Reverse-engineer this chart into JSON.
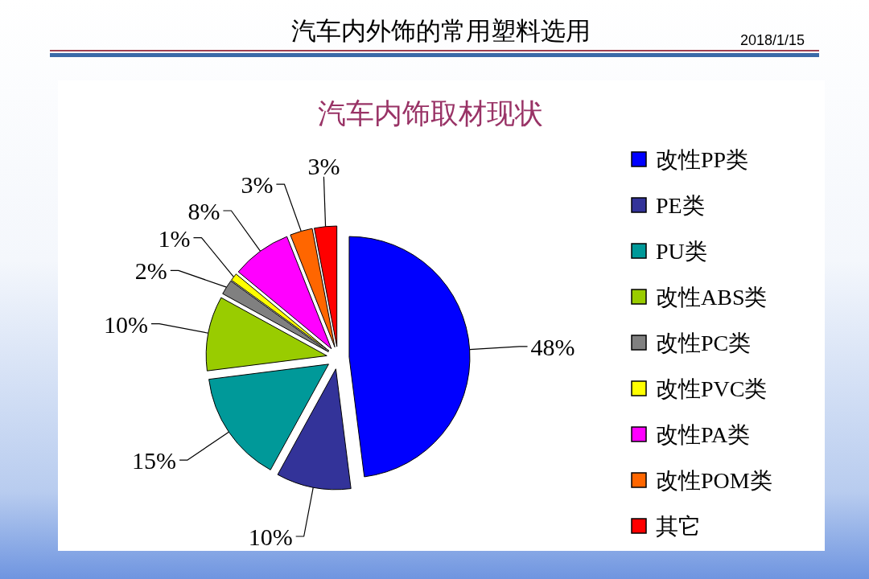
{
  "chart_data": {
    "type": "pie",
    "title": "汽车内外饰的常用塑料选用",
    "subtitle": "汽车内饰取材现状",
    "annotations": [
      "2018/1/15"
    ],
    "categories": [
      "改性PP类",
      "PE类",
      "PU类",
      "改性ABS类",
      "改性PC类",
      "改性PVC类",
      "改性PA类",
      "改性POM类",
      "其它"
    ],
    "values": [
      48,
      10,
      15,
      10,
      2,
      1,
      8,
      3,
      3
    ],
    "colors": [
      "#0000ff",
      "#333399",
      "#009999",
      "#99cc00",
      "#808080",
      "#ffff00",
      "#ff00ff",
      "#ff6600",
      "#ff0000"
    ],
    "value_labels": [
      "48%",
      "10%",
      "15%",
      "10%",
      "2%",
      "1%",
      "8%",
      "3%",
      "3%"
    ],
    "legend": "right"
  }
}
